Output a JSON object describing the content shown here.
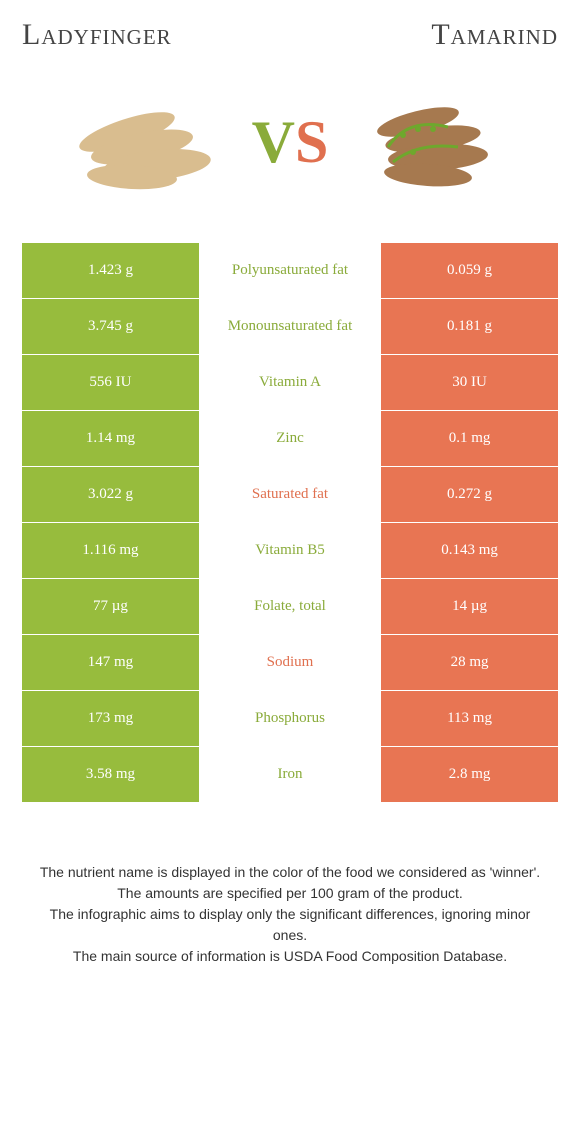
{
  "header": {
    "left": "Ladyfinger",
    "right": "Tamarind"
  },
  "vs": {
    "v": "V",
    "s": "S"
  },
  "colors": {
    "green": "#97bc3d",
    "green_text": "#8aab3a",
    "orange": "#e87553",
    "orange_text": "#e0704f",
    "background": "#ffffff"
  },
  "rows": [
    {
      "left": "1.423 g",
      "label": "Polyunsaturated fat",
      "right": "0.059 g",
      "winner": "green"
    },
    {
      "left": "3.745 g",
      "label": "Monounsaturated fat",
      "right": "0.181 g",
      "winner": "green"
    },
    {
      "left": "556 IU",
      "label": "Vitamin A",
      "right": "30 IU",
      "winner": "green"
    },
    {
      "left": "1.14 mg",
      "label": "Zinc",
      "right": "0.1 mg",
      "winner": "green"
    },
    {
      "left": "3.022 g",
      "label": "Saturated fat",
      "right": "0.272 g",
      "winner": "orange"
    },
    {
      "left": "1.116 mg",
      "label": "Vitamin B5",
      "right": "0.143 mg",
      "winner": "green"
    },
    {
      "left": "77 µg",
      "label": "Folate, total",
      "right": "14 µg",
      "winner": "green"
    },
    {
      "left": "147 mg",
      "label": "Sodium",
      "right": "28 mg",
      "winner": "orange"
    },
    {
      "left": "173 mg",
      "label": "Phosphorus",
      "right": "113 mg",
      "winner": "green"
    },
    {
      "left": "3.58 mg",
      "label": "Iron",
      "right": "2.8 mg",
      "winner": "green"
    }
  ],
  "footer": {
    "line1": "The nutrient name is displayed in the color of the food we considered as 'winner'.",
    "line2": "The amounts are specified per 100 gram of the product.",
    "line3": "The infographic aims to display only the significant differences, ignoring minor ones.",
    "line4": "The main source of information is USDA Food Composition Database."
  }
}
